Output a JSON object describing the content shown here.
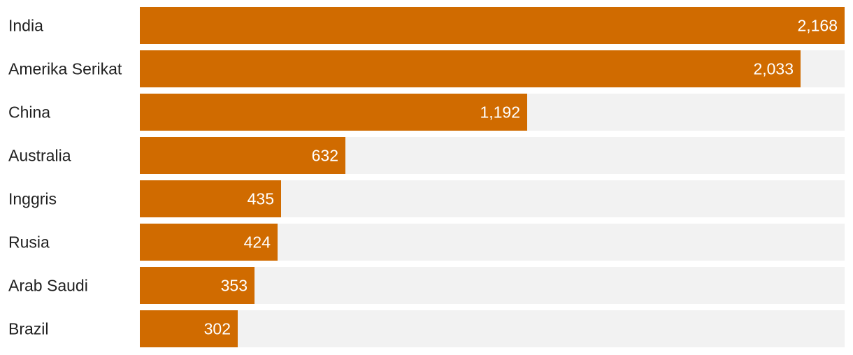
{
  "chart_data": {
    "type": "bar",
    "orientation": "horizontal",
    "title": "",
    "xlabel": "",
    "ylabel": "",
    "categories": [
      "India",
      "Amerika Serikat",
      "China",
      "Australia",
      "Inggris",
      "Rusia",
      "Arab Saudi",
      "Brazil"
    ],
    "values": [
      2168,
      2033,
      1192,
      632,
      435,
      424,
      353,
      302
    ],
    "value_labels": [
      "2,168",
      "2,033",
      "1,192",
      "632",
      "435",
      "424",
      "353",
      "302"
    ],
    "xlim": [
      0,
      2168
    ],
    "grid": false,
    "legend": "none"
  },
  "colors": {
    "bar": "#d06b00",
    "track": "#f2f2f2",
    "value_text": "#ffffff",
    "category_text": "#1f1f1f"
  }
}
